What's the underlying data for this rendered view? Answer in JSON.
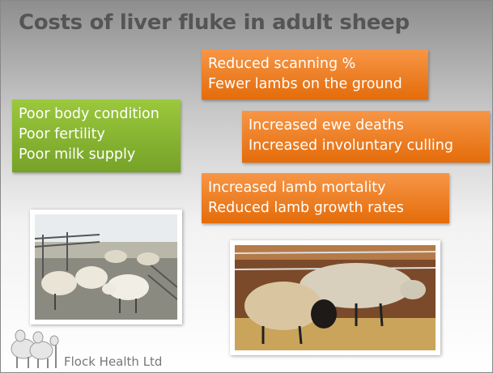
{
  "slide": {
    "title": "Costs of liver fluke in adult sheep",
    "boxes": [
      {
        "lines": [
          "Reduced scanning %",
          "Fewer lambs on the ground"
        ]
      },
      {
        "lines": [
          "Poor body condition",
          "Poor fertility",
          "Poor milk supply"
        ]
      },
      {
        "lines": [
          "Increased ewe deaths",
          "Increased involuntary culling"
        ]
      },
      {
        "lines": [
          "Increased lamb mortality",
          "Reduced lamb growth rates"
        ]
      }
    ],
    "footer": "Flock Health Ltd"
  }
}
